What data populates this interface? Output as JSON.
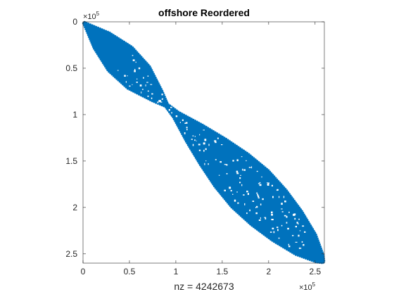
{
  "chart_data": {
    "type": "scatter",
    "subtype": "sparsity-pattern",
    "title": "offshore Reordered",
    "xlabel": "nz = 4242673",
    "ylabel": "",
    "xlim": [
      0,
      2.6
    ],
    "ylim": [
      0,
      2.6
    ],
    "y_reversed": true,
    "grid": false,
    "color": "#0072BD",
    "x_ticks": [
      0,
      0.5,
      1,
      1.5,
      2,
      2.5
    ],
    "x_tick_labels": [
      "0",
      "0.5",
      "1",
      "1.5",
      "2",
      "2.5"
    ],
    "y_ticks": [
      0,
      0.5,
      1,
      1.5,
      2,
      2.5
    ],
    "y_tick_labels": [
      "0",
      "0.5",
      "1",
      "1.5",
      "2",
      "2.5"
    ],
    "x_exponent": {
      "base": "×10",
      "power": "5"
    },
    "y_exponent": {
      "base": "×10",
      "power": "5"
    },
    "band_profile": {
      "position": [
        0,
        0.2,
        0.4,
        0.6,
        0.8,
        0.9,
        1.0,
        1.2,
        1.4,
        1.6,
        1.8,
        2.0,
        2.2,
        2.4,
        2.55,
        2.6
      ],
      "half_width": [
        0.01,
        0.085,
        0.13,
        0.12,
        0.055,
        0.015,
        0.03,
        0.09,
        0.14,
        0.18,
        0.2,
        0.19,
        0.16,
        0.11,
        0.04,
        0.01
      ]
    }
  }
}
